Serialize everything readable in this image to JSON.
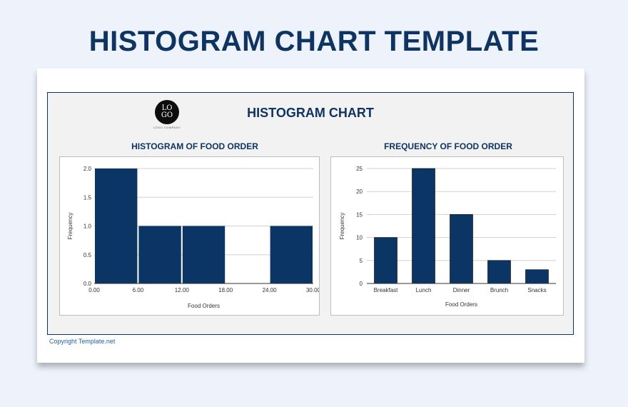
{
  "page": {
    "title": "HISTOGRAM CHART TEMPLATE",
    "copyright": "Copyright Template.net"
  },
  "logo": {
    "line1": "LO",
    "line2": "GO",
    "sub": "LOGO COMPANY"
  },
  "report": {
    "title": "HISTOGRAM CHART"
  },
  "chart_data": [
    {
      "type": "bar",
      "title": "HISTOGRAM OF FOOD ORDER",
      "xlabel": "Food Orders",
      "ylabel": "Frequency",
      "bins": [
        {
          "start": 0,
          "end": 6,
          "value": 2
        },
        {
          "start": 6,
          "end": 12,
          "value": 1
        },
        {
          "start": 12,
          "end": 18,
          "value": 1
        },
        {
          "start": 18,
          "end": 24,
          "value": 0
        },
        {
          "start": 24,
          "end": 30,
          "value": 1
        }
      ],
      "xticks": [
        "0.00",
        "6.00",
        "12.00",
        "18.00",
        "24.00",
        "30.00"
      ],
      "yticks": [
        "0.0",
        "0.5",
        "1.0",
        "1.5",
        "2.0"
      ],
      "xlim": [
        0,
        30
      ],
      "ylim": [
        0,
        2
      ],
      "grid": true,
      "color": "#0a3564"
    },
    {
      "type": "bar",
      "title": "FREQUENCY OF FOOD ORDER",
      "xlabel": "Food Orders",
      "ylabel": "Frequency",
      "categories": [
        "Breakfast",
        "Lunch",
        "Dinner",
        "Brunch",
        "Snacks"
      ],
      "values": [
        10,
        25,
        15,
        5,
        3
      ],
      "yticks": [
        "0",
        "5",
        "10",
        "15",
        "20",
        "25"
      ],
      "ylim": [
        0,
        25
      ],
      "grid": true,
      "color": "#0a3564"
    }
  ]
}
